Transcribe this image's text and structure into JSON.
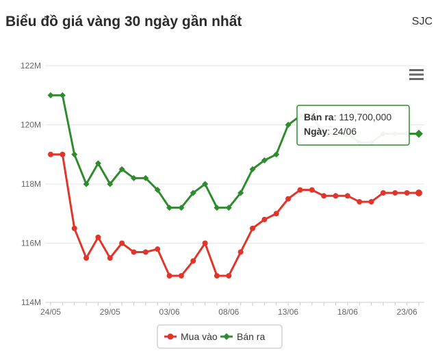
{
  "header": {
    "title": "Biểu đồ giá vàng 30 ngày gần nhất",
    "source": "SJC"
  },
  "colors": {
    "buy": "#e0352b",
    "sell": "#2e8b2e",
    "grid": "#e6e6e6",
    "axis_text": "#666666"
  },
  "icons": {
    "menu": "hamburger-menu-icon"
  },
  "chart_data": {
    "type": "line",
    "x": [
      "24/05",
      "25/05",
      "26/05",
      "27/05",
      "28/05",
      "29/05",
      "30/05",
      "31/05",
      "01/06",
      "02/06",
      "03/06",
      "04/06",
      "05/06",
      "06/06",
      "07/06",
      "08/06",
      "09/06",
      "10/06",
      "11/06",
      "12/06",
      "13/06",
      "14/06",
      "15/06",
      "16/06",
      "17/06",
      "18/06",
      "19/06",
      "20/06",
      "21/06",
      "22/06",
      "23/06",
      "24/06"
    ],
    "x_tick_labels": [
      "24/05",
      "29/05",
      "03/06",
      "08/06",
      "13/06",
      "18/06",
      "23/06"
    ],
    "y_tick_labels": [
      "114M",
      "116M",
      "118M",
      "120M",
      "122M"
    ],
    "y_ticks": [
      114000000,
      116000000,
      118000000,
      120000000,
      122000000
    ],
    "ylim": [
      114000000,
      122000000
    ],
    "grid": true,
    "legend_position": "bottom-center",
    "series": [
      {
        "name": "Mua vào",
        "values": [
          119000000,
          119000000,
          116500000,
          115500000,
          116200000,
          115500000,
          116000000,
          115700000,
          115700000,
          115800000,
          114900000,
          114900000,
          115400000,
          116000000,
          114900000,
          114900000,
          115700000,
          116500000,
          116800000,
          117000000,
          117500000,
          117800000,
          117800000,
          117600000,
          117600000,
          117600000,
          117400000,
          117400000,
          117700000,
          117700000,
          117700000,
          117700000
        ]
      },
      {
        "name": "Bán ra",
        "values": [
          121000000,
          121000000,
          119000000,
          118000000,
          118700000,
          118000000,
          118500000,
          118200000,
          118200000,
          117800000,
          117200000,
          117200000,
          117700000,
          118000000,
          117200000,
          117200000,
          117700000,
          118500000,
          118800000,
          119000000,
          120000000,
          120300000,
          120300000,
          119700000,
          119700000,
          119700000,
          119400000,
          119400000,
          119700000,
          119700000,
          119700000,
          119700000
        ]
      }
    ],
    "tooltip": {
      "series_label": "Bán ra",
      "value_text": "119,700,000",
      "date_label": "Ngày",
      "date_text": "24/06"
    }
  }
}
